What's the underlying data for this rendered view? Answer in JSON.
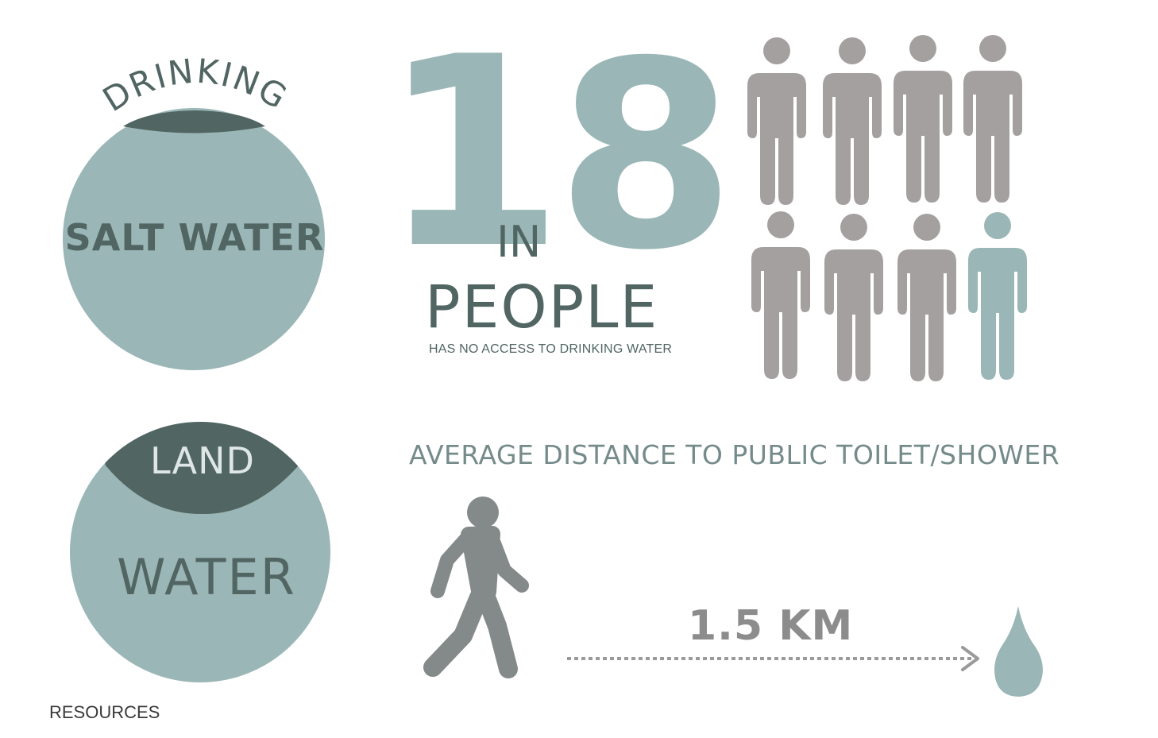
{
  "colors": {
    "light_teal": "#9ab6b6",
    "dark_slate": "#516562",
    "person_gray": "#a4a09f",
    "walker_gray": "#848a89",
    "arrow_gray": "#9a9a9a"
  },
  "drinking_circle": {
    "arc_label": "DRINKING",
    "main_label": "SALT WATER"
  },
  "land_circle": {
    "top_label": "LAND",
    "main_label": "WATER"
  },
  "stat": {
    "numerator": "1",
    "connector": "IN",
    "denominator": "8",
    "unit": "PEOPLE",
    "caption": "HAS NO ACCESS TO DRINKING WATER",
    "people_total": 8,
    "people_highlighted": 1
  },
  "distance": {
    "title": "AVERAGE DISTANCE TO PUBLIC TOILET/SHOWER",
    "value": "1.5 KM",
    "walker_icon": "walking-person-icon",
    "destination_icon": "water-drop-icon"
  },
  "footer": {
    "label": "RESOURCES"
  }
}
